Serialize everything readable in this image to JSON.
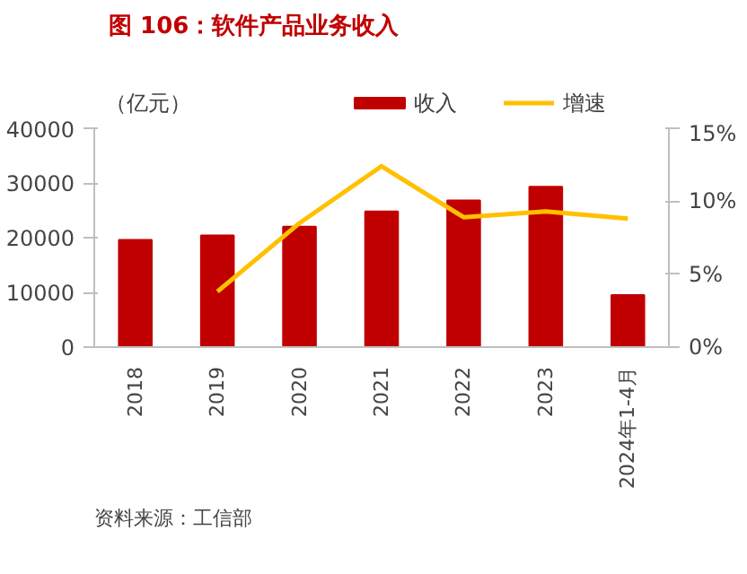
{
  "chart_data": {
    "type": "bar",
    "title": "图 106：软件产品业务收入",
    "ylabel": "（亿元）",
    "categories": [
      "2018",
      "2019",
      "2020",
      "2021",
      "2022",
      "2023",
      "2024年1-4月"
    ],
    "series": [
      {
        "name": "收入",
        "color": "#c00000",
        "values": [
          19600,
          20400,
          22000,
          24800,
          26800,
          29300,
          9500
        ]
      },
      {
        "name": "增速",
        "type": "line",
        "axis": "y2",
        "color": "#ffc000",
        "values": [
          null,
          3.8,
          8.5,
          12.4,
          8.9,
          9.3,
          8.8
        ]
      }
    ],
    "ylim": [
      0,
      40000
    ],
    "yticks": [
      0,
      10000,
      20000,
      30000,
      40000
    ],
    "y2lim": [
      0,
      15
    ],
    "y2ticks": [
      {
        "value": 0,
        "label": "0%"
      },
      {
        "value": 5,
        "label": "5%"
      },
      {
        "value": 10,
        "label": "10%"
      },
      {
        "value": 15,
        "label": "15%"
      }
    ],
    "grid": false,
    "legend": "top",
    "marker": "none",
    "annotations": [
      "资料来源：工信部"
    ]
  }
}
